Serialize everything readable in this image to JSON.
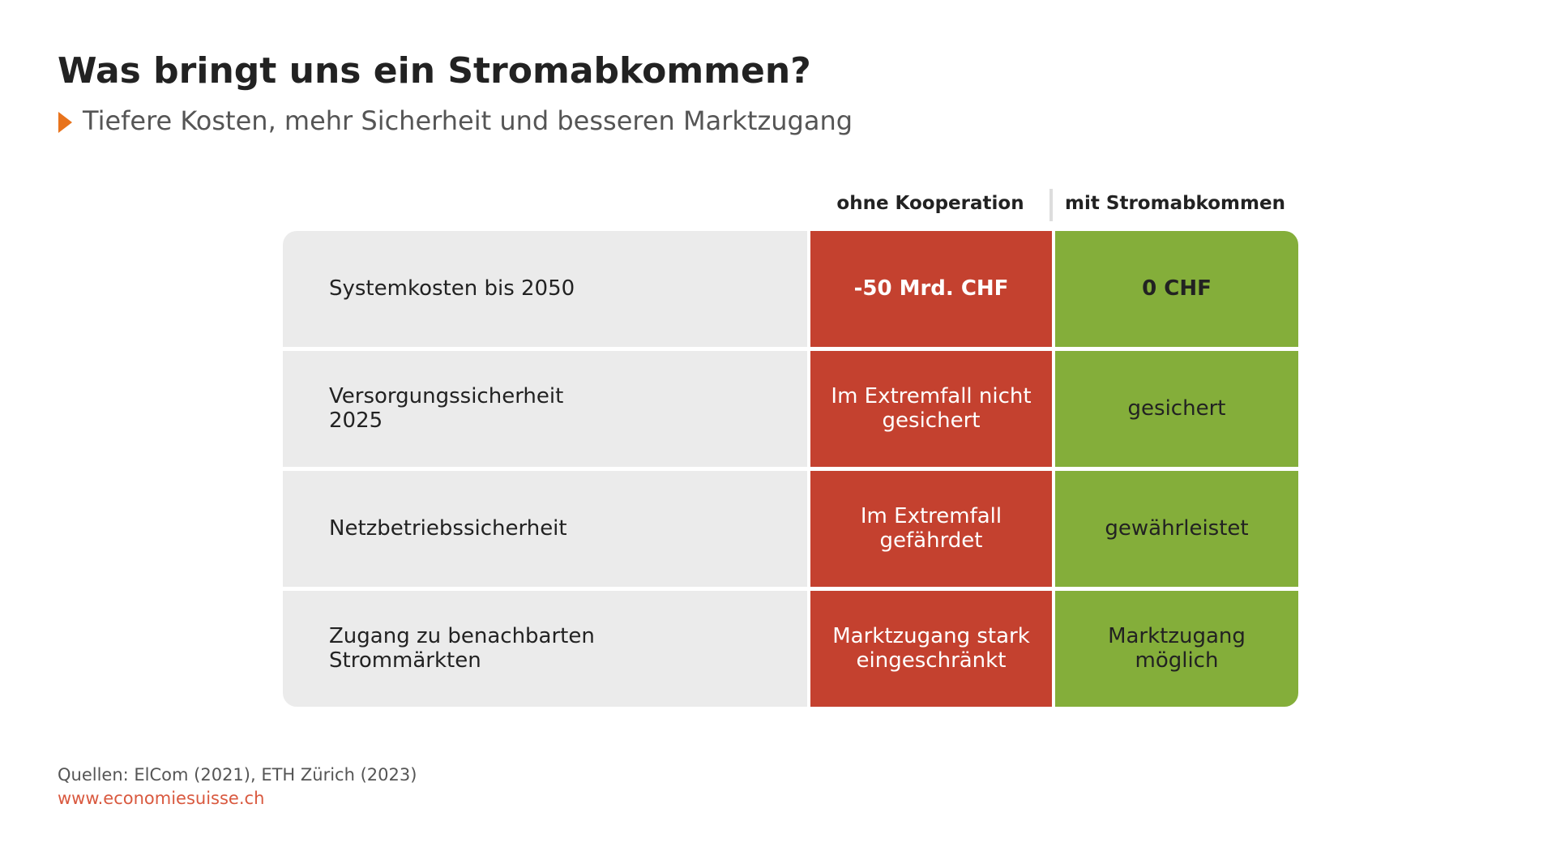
{
  "header": {
    "title": "Was bringt uns ein Stromabkommen?",
    "subtitle": "Tiefere Kosten, mehr Sicherheit und besseren Marktzugang"
  },
  "table": {
    "columns": [
      "ohne Kooperation",
      "mit Stromabkommen"
    ],
    "rows": [
      [
        "Systemkosten bis 2050",
        "-50 Mrd. CHF",
        "0 CHF"
      ],
      [
        "Versorgungssicherheit\n2025",
        "Im Extremfall nicht\ngesichert",
        "gesichert"
      ],
      [
        "Netzbetriebssicherheit",
        "Im Extremfall\ngefährdet",
        "gewährleistet"
      ],
      [
        "Zugang zu benachbarten\nStrommärkten",
        "Marktzugang stark\neingeschränkt",
        "Marktzugang\nmöglich"
      ]
    ]
  },
  "footer": {
    "source": "Quellen: ElCom (2021), ETH Zürich (2023)",
    "url": "www.economiesuisse.ch"
  }
}
